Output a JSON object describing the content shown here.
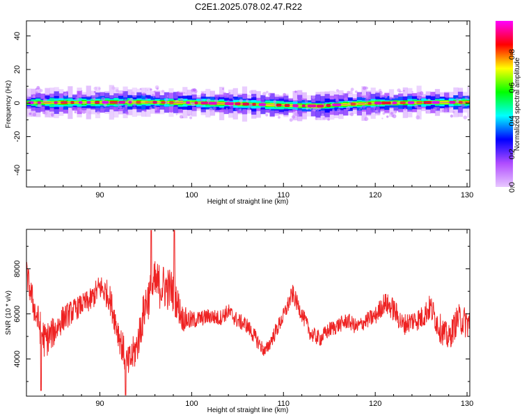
{
  "page": {
    "title": "C2E1.2025.078.02.47.R22"
  },
  "chart_data": [
    {
      "type": "heatmap",
      "title": "C2E1.2025.078.02.47.R22",
      "xlabel": "Height of straight line (km)",
      "ylabel": "Frequency (Hz)",
      "xlim": [
        82,
        130.3
      ],
      "ylim": [
        -50,
        49
      ],
      "xticks": [
        90,
        100,
        110,
        120,
        130
      ],
      "yticks": [
        -40,
        -20,
        0,
        20,
        40
      ],
      "band_center_hz": [
        [
          82,
          0.2
        ],
        [
          95,
          0.5
        ],
        [
          100,
          0.2
        ],
        [
          106,
          -0.6
        ],
        [
          111,
          -1.5
        ],
        [
          114,
          -1.8
        ],
        [
          116,
          -1.0
        ],
        [
          120,
          0.0
        ],
        [
          125,
          0.3
        ],
        [
          130.3,
          0.5
        ]
      ],
      "colorbar": {
        "label": "Normalized spectral amplitude",
        "range": [
          0,
          1
        ],
        "ticks": [
          0.0,
          0.2,
          0.4,
          0.6,
          0.8
        ],
        "colormap": [
          "#e8c8ff",
          "#b04cff",
          "#0000ff",
          "#00ffff",
          "#00ff00",
          "#ffff00",
          "#ff0000",
          "#ff00ff"
        ]
      }
    },
    {
      "type": "line",
      "xlabel": "Height of straight line (km)",
      "ylabel": "SNR (10 * v/v)",
      "xlim": [
        82,
        130.3
      ],
      "ylim": [
        2350,
        9750
      ],
      "xticks": [
        90,
        100,
        110,
        120,
        130
      ],
      "yticks": [
        4000,
        6000,
        8000
      ],
      "color": "#ee2222",
      "envelope": {
        "x": [
          82,
          83,
          84,
          85,
          86,
          87,
          88,
          89,
          90,
          91,
          92,
          93,
          94,
          95,
          96,
          97,
          98,
          99,
          100,
          101,
          102,
          103,
          104,
          105,
          106,
          107,
          108,
          109,
          110,
          111,
          112,
          113,
          114,
          115,
          116,
          117,
          118,
          119,
          120,
          121,
          122,
          123,
          124,
          125,
          126,
          127,
          128,
          129,
          130
        ],
        "y": [
          7800,
          6000,
          4800,
          5200,
          5800,
          6100,
          6400,
          6600,
          7200,
          6800,
          5200,
          3700,
          4500,
          6500,
          7300,
          7200,
          7000,
          5800,
          5700,
          5800,
          5900,
          5800,
          6100,
          5700,
          5500,
          4900,
          4300,
          5100,
          5900,
          6900,
          6000,
          5100,
          4900,
          5300,
          5500,
          5700,
          5400,
          5700,
          5900,
          6500,
          6200,
          5500,
          5700,
          5800,
          6300,
          5400,
          4900,
          5800,
          5600
        ],
        "amplitude": [
          500,
          600,
          700,
          550,
          500,
          450,
          400,
          450,
          500,
          550,
          600,
          650,
          700,
          800,
          900,
          850,
          800,
          500,
          350,
          300,
          300,
          300,
          300,
          300,
          300,
          300,
          250,
          300,
          300,
          350,
          300,
          300,
          300,
          300,
          300,
          300,
          300,
          300,
          350,
          400,
          450,
          400,
          400,
          450,
          500,
          550,
          500,
          550,
          600
        ]
      },
      "peaks": [
        [
          95.6,
          9700
        ],
        [
          98.1,
          9700
        ],
        [
          92.8,
          2400
        ],
        [
          83.6,
          2600
        ]
      ]
    }
  ]
}
